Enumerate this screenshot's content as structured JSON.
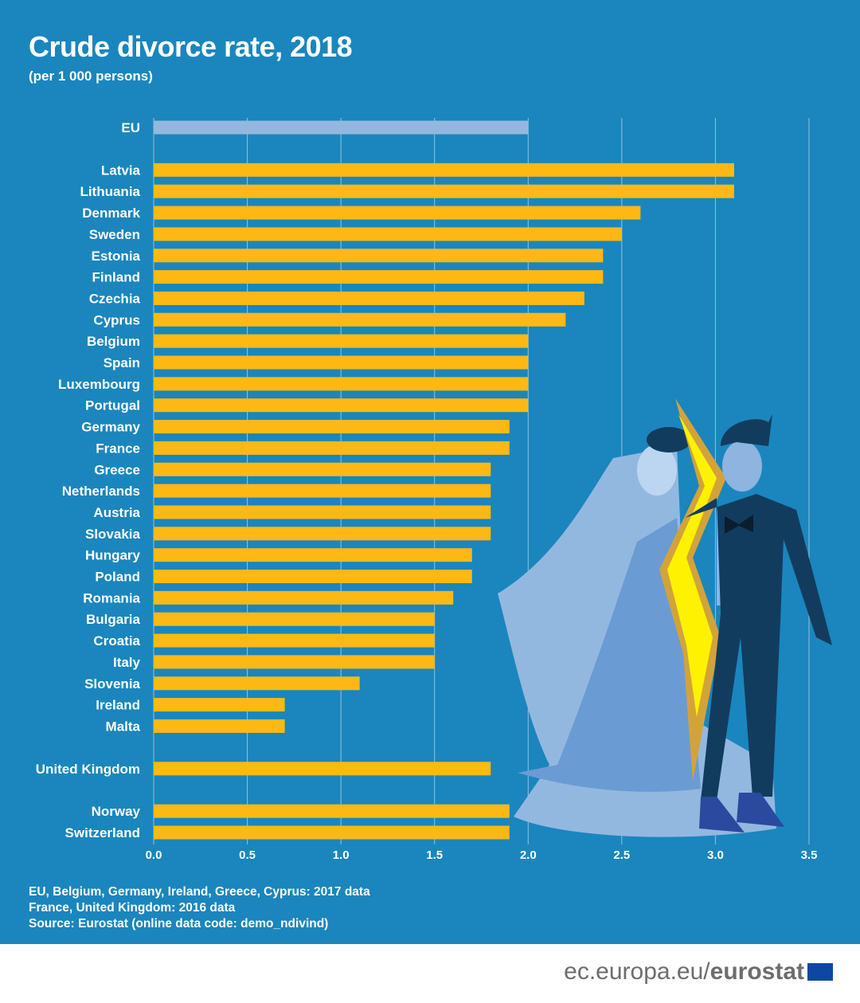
{
  "chart_data": {
    "type": "bar",
    "orientation": "horizontal",
    "title": "Crude divorce rate, 2018",
    "subtitle": "(per 1 000 persons)",
    "xlim": [
      0,
      3.5
    ],
    "xticks": [
      "0.0",
      "0.5",
      "1.0",
      "1.5",
      "2.0",
      "2.5",
      "3.0",
      "3.5"
    ],
    "grid": true,
    "groups": [
      {
        "bars": [
          {
            "label": "EU",
            "value": 2.0,
            "highlight": true
          }
        ]
      },
      {
        "bars": [
          {
            "label": "Latvia",
            "value": 3.1
          },
          {
            "label": "Lithuania",
            "value": 3.1
          },
          {
            "label": "Denmark",
            "value": 2.6
          },
          {
            "label": "Sweden",
            "value": 2.5
          },
          {
            "label": "Estonia",
            "value": 2.4
          },
          {
            "label": "Finland",
            "value": 2.4
          },
          {
            "label": "Czechia",
            "value": 2.3
          },
          {
            "label": "Cyprus",
            "value": 2.2
          },
          {
            "label": "Belgium",
            "value": 2.0
          },
          {
            "label": "Spain",
            "value": 2.0
          },
          {
            "label": "Luxembourg",
            "value": 2.0
          },
          {
            "label": "Portugal",
            "value": 2.0
          },
          {
            "label": "Germany",
            "value": 1.9
          },
          {
            "label": "France",
            "value": 1.9
          },
          {
            "label": "Greece",
            "value": 1.8
          },
          {
            "label": "Netherlands",
            "value": 1.8
          },
          {
            "label": "Austria",
            "value": 1.8
          },
          {
            "label": "Slovakia",
            "value": 1.8
          },
          {
            "label": "Hungary",
            "value": 1.7
          },
          {
            "label": "Poland",
            "value": 1.7
          },
          {
            "label": "Romania",
            "value": 1.6
          },
          {
            "label": "Bulgaria",
            "value": 1.5
          },
          {
            "label": "Croatia",
            "value": 1.5
          },
          {
            "label": "Italy",
            "value": 1.5
          },
          {
            "label": "Slovenia",
            "value": 1.1
          },
          {
            "label": "Ireland",
            "value": 0.7
          },
          {
            "label": "Malta",
            "value": 0.7
          }
        ]
      },
      {
        "bars": [
          {
            "label": "United Kingdom",
            "value": 1.8
          }
        ]
      },
      {
        "bars": [
          {
            "label": "Norway",
            "value": 1.9
          },
          {
            "label": "Switzerland",
            "value": 1.9
          }
        ]
      }
    ],
    "colors": {
      "bar": "#fdb813",
      "highlight": "#93b8e0",
      "background": "#1a86bd",
      "grid": "#8fc3e0"
    }
  },
  "notes": [
    "EU, Belgium, Germany, Ireland, Greece, Cyprus: 2017 data",
    "France, United Kingdom: 2016 data",
    "Source: Eurostat (online data code: demo_ndivind)"
  ],
  "footer": {
    "domain": "ec.europa.eu/",
    "brand": "eurostat"
  }
}
